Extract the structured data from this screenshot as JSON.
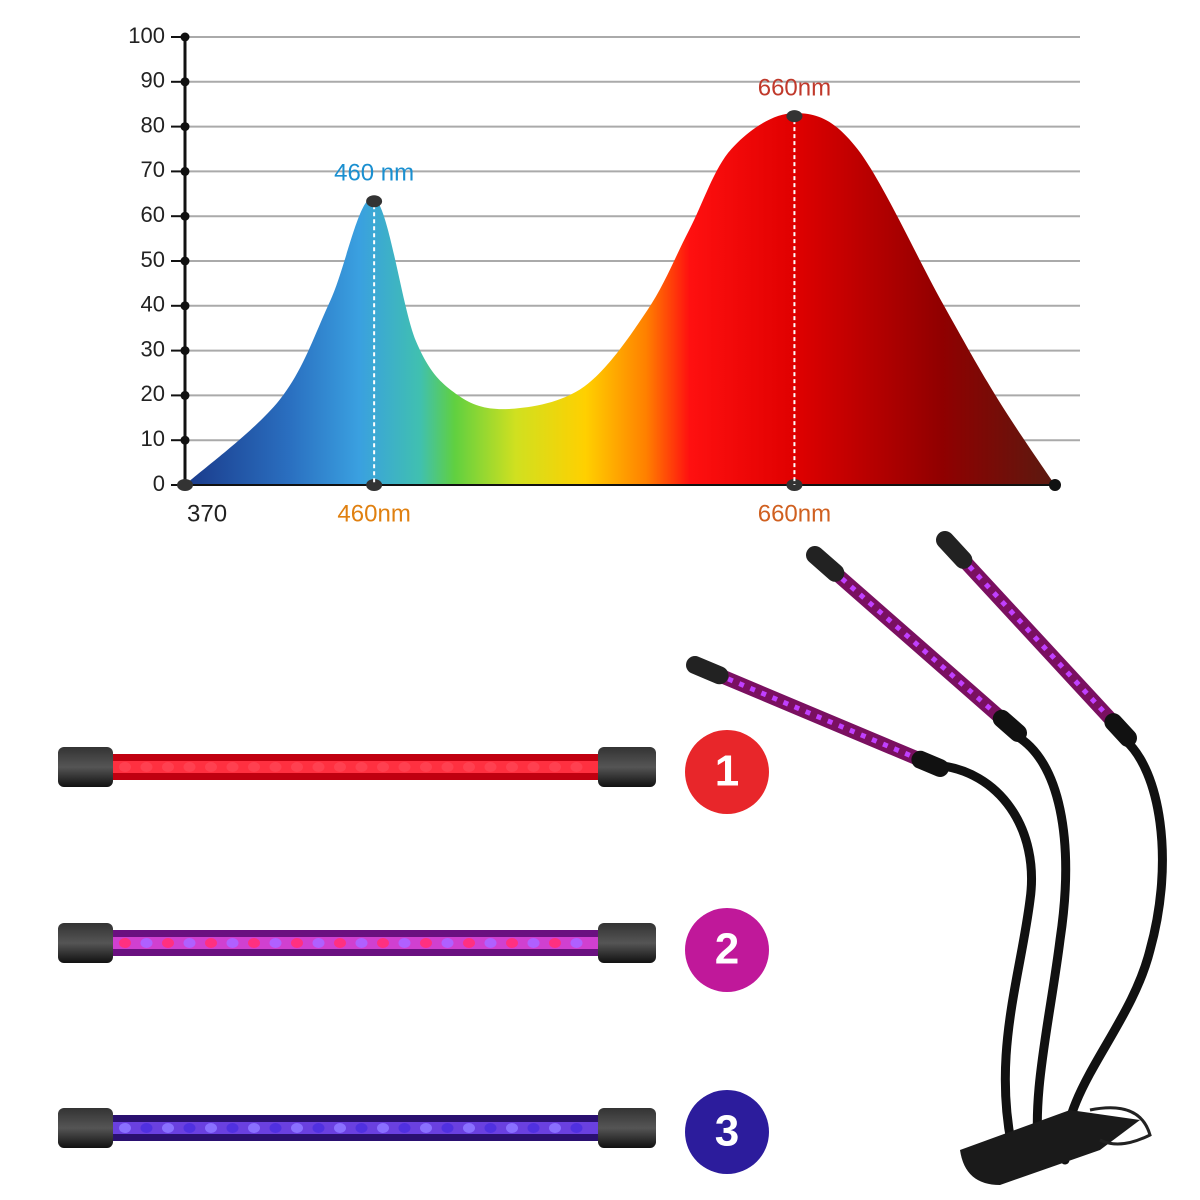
{
  "chart_data": {
    "type": "area",
    "x": [
      370,
      415,
      439,
      460,
      480,
      500,
      525,
      560,
      590,
      610,
      630,
      660,
      690,
      730,
      757,
      784
    ],
    "values": [
      0,
      19,
      41,
      64,
      32,
      20,
      17,
      22,
      39,
      57,
      75,
      83,
      75,
      41,
      19,
      0
    ],
    "xlim": [
      370,
      784
    ],
    "ylim": [
      0,
      100
    ],
    "yticks": [
      0,
      10,
      20,
      30,
      40,
      50,
      60,
      70,
      80,
      90,
      100
    ],
    "xticks": [
      370,
      {
        "value": 460,
        "label": "460nm"
      },
      {
        "value": 660,
        "label": "660nm"
      }
    ],
    "annotations": [
      {
        "x": 460,
        "y": 64,
        "text": "460 nm",
        "color": "#1a8fd0"
      },
      {
        "x": 660,
        "y": 83,
        "text": "660nm",
        "color": "#c0392b"
      }
    ],
    "grid": true
  },
  "badges": [
    {
      "text": "1",
      "color": "#e8262a"
    },
    {
      "text": "2",
      "color": "#c0189a"
    },
    {
      "text": "3",
      "color": "#2c1c9c"
    }
  ]
}
